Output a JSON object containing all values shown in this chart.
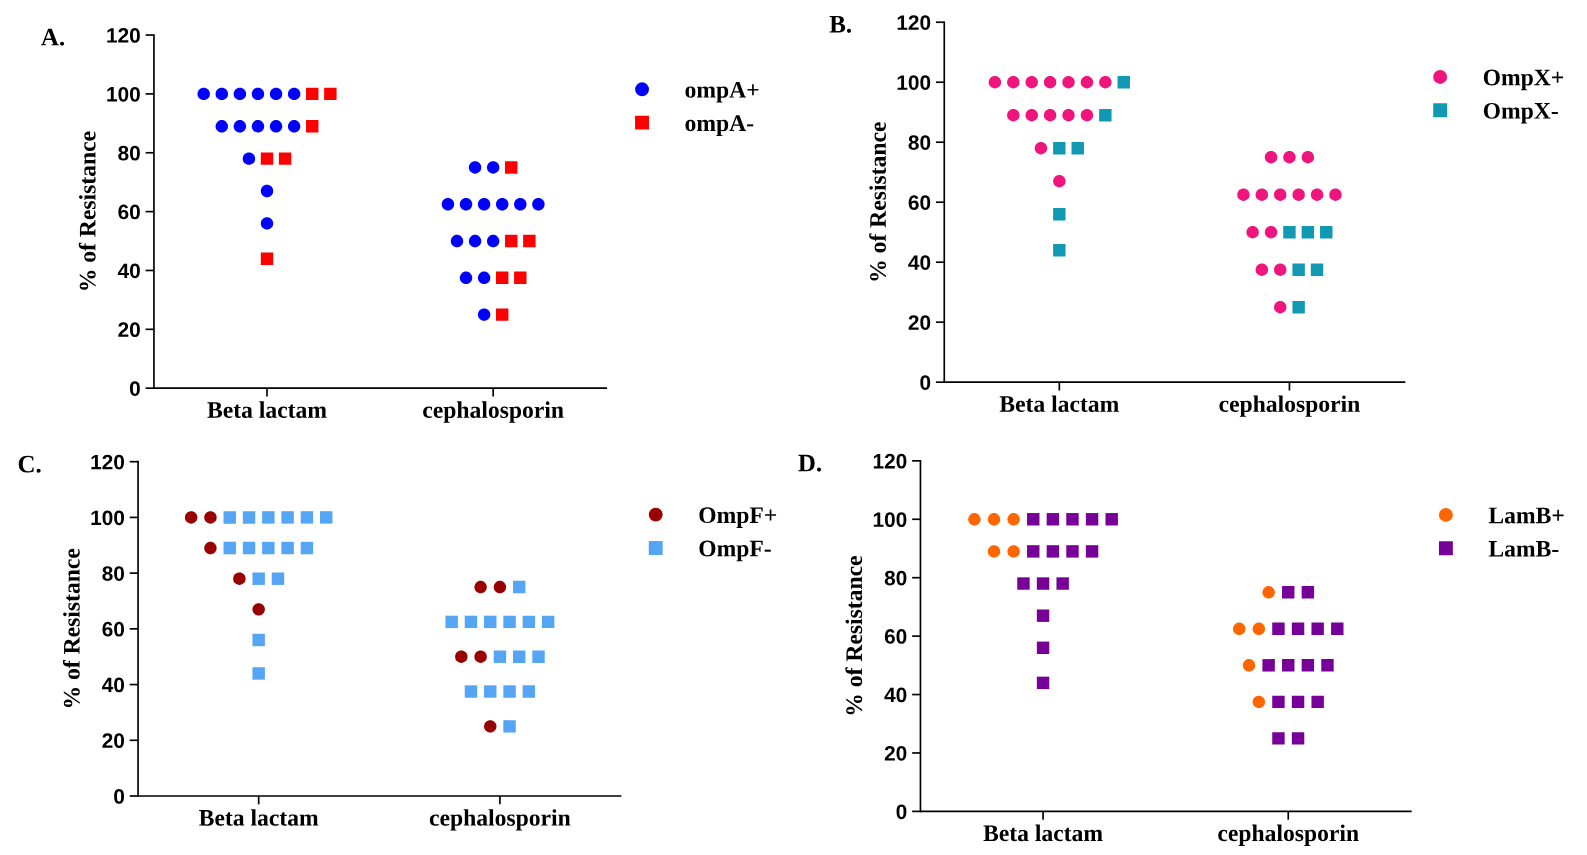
{
  "chart_data": [
    {
      "type": "scatter",
      "title": "A.",
      "ylabel": "% of Resistance",
      "categories": [
        "Beta lactam",
        "cephalosporin"
      ],
      "ylim": [
        0,
        120
      ],
      "yticks": [
        0,
        20,
        40,
        60,
        80,
        100,
        120
      ],
      "legend": "right",
      "series": [
        {
          "name": "ompA+",
          "color": "#0000ff",
          "marker": "circle",
          "x": [
            "Beta lactam",
            "Beta lactam",
            "Beta lactam",
            "Beta lactam",
            "Beta lactam",
            "Beta lactam",
            "Beta lactam",
            "Beta lactam",
            "Beta lactam",
            "Beta lactam",
            "Beta lactam",
            "Beta lactam",
            "Beta lactam",
            "Beta lactam",
            "cephalosporin",
            "cephalosporin",
            "cephalosporin",
            "cephalosporin",
            "cephalosporin",
            "cephalosporin",
            "cephalosporin",
            "cephalosporin",
            "cephalosporin",
            "cephalosporin",
            "cephalosporin",
            "cephalosporin",
            "cephalosporin",
            "cephalosporin"
          ],
          "values": [
            100,
            100,
            100,
            100,
            100,
            100,
            89,
            89,
            89,
            89,
            89,
            78,
            67,
            56,
            75,
            75,
            62.5,
            62.5,
            62.5,
            62.5,
            62.5,
            62.5,
            50,
            50,
            50,
            37.5,
            37.5,
            25
          ]
        },
        {
          "name": "ompA-",
          "color": "#ff0000",
          "marker": "square",
          "x": [
            "Beta lactam",
            "Beta lactam",
            "Beta lactam",
            "Beta lactam",
            "Beta lactam",
            "Beta lactam",
            "cephalosporin",
            "cephalosporin",
            "cephalosporin",
            "cephalosporin",
            "cephalosporin",
            "cephalosporin"
          ],
          "values": [
            100,
            100,
            89,
            78,
            78,
            44,
            75,
            50,
            50,
            37.5,
            37.5,
            25
          ]
        }
      ]
    },
    {
      "type": "scatter",
      "title": "B.",
      "ylabel": "% of Resistance",
      "categories": [
        "Beta lactam",
        "cephalosporin"
      ],
      "ylim": [
        0,
        120
      ],
      "yticks": [
        0,
        20,
        40,
        60,
        80,
        100,
        120
      ],
      "legend": "right",
      "series": [
        {
          "name": "OmpX+",
          "color": "#f0157d",
          "marker": "circle",
          "x": [
            "Beta lactam",
            "Beta lactam",
            "Beta lactam",
            "Beta lactam",
            "Beta lactam",
            "Beta lactam",
            "Beta lactam",
            "Beta lactam",
            "Beta lactam",
            "Beta lactam",
            "Beta lactam",
            "Beta lactam",
            "Beta lactam",
            "Beta lactam",
            "cephalosporin",
            "cephalosporin",
            "cephalosporin",
            "cephalosporin",
            "cephalosporin",
            "cephalosporin",
            "cephalosporin",
            "cephalosporin",
            "cephalosporin",
            "cephalosporin",
            "cephalosporin",
            "cephalosporin",
            "cephalosporin",
            "cephalosporin"
          ],
          "values": [
            100,
            100,
            100,
            100,
            100,
            100,
            100,
            89,
            89,
            89,
            89,
            89,
            78,
            67,
            75,
            75,
            75,
            62.5,
            62.5,
            62.5,
            62.5,
            62.5,
            62.5,
            50,
            50,
            37.5,
            37.5,
            25
          ]
        },
        {
          "name": "OmpX-",
          "color": "#1199b4",
          "marker": "square",
          "x": [
            "Beta lactam",
            "Beta lactam",
            "Beta lactam",
            "Beta lactam",
            "Beta lactam",
            "Beta lactam",
            "cephalosporin",
            "cephalosporin",
            "cephalosporin",
            "cephalosporin",
            "cephalosporin",
            "cephalosporin"
          ],
          "values": [
            100,
            89,
            78,
            78,
            56,
            44,
            50,
            50,
            50,
            37.5,
            37.5,
            25
          ]
        }
      ]
    },
    {
      "type": "scatter",
      "title": "C.",
      "ylabel": "% of Resistance",
      "categories": [
        "Beta lactam",
        "cephalosporin"
      ],
      "ylim": [
        0,
        120
      ],
      "yticks": [
        0,
        20,
        40,
        60,
        80,
        100,
        120
      ],
      "legend": "right",
      "series": [
        {
          "name": "OmpF+",
          "color": "#990000",
          "marker": "circle",
          "x": [
            "Beta lactam",
            "Beta lactam",
            "Beta lactam",
            "Beta lactam",
            "Beta lactam",
            "cephalosporin",
            "cephalosporin",
            "cephalosporin",
            "cephalosporin",
            "cephalosporin"
          ],
          "values": [
            100,
            100,
            89,
            78,
            67,
            75,
            75,
            50,
            50,
            25
          ]
        },
        {
          "name": "OmpF-",
          "color": "#55a5f5",
          "marker": "square",
          "x": [
            "Beta lactam",
            "Beta lactam",
            "Beta lactam",
            "Beta lactam",
            "Beta lactam",
            "Beta lactam",
            "Beta lactam",
            "Beta lactam",
            "Beta lactam",
            "Beta lactam",
            "Beta lactam",
            "Beta lactam",
            "Beta lactam",
            "Beta lactam",
            "Beta lactam",
            "cephalosporin",
            "cephalosporin",
            "cephalosporin",
            "cephalosporin",
            "cephalosporin",
            "cephalosporin",
            "cephalosporin",
            "cephalosporin",
            "cephalosporin",
            "cephalosporin",
            "cephalosporin",
            "cephalosporin",
            "cephalosporin",
            "cephalosporin",
            "cephalosporin"
          ],
          "values": [
            100,
            100,
            100,
            100,
            100,
            100,
            89,
            89,
            89,
            89,
            89,
            78,
            78,
            56,
            44,
            75,
            62.5,
            62.5,
            62.5,
            62.5,
            62.5,
            62.5,
            50,
            50,
            50,
            37.5,
            37.5,
            37.5,
            37.5,
            25
          ]
        }
      ]
    },
    {
      "type": "scatter",
      "title": "D.",
      "ylabel": "% of Resistance",
      "categories": [
        "Beta lactam",
        "cephalosporin"
      ],
      "ylim": [
        0,
        120
      ],
      "yticks": [
        0,
        20,
        40,
        60,
        80,
        100,
        120
      ],
      "legend": "right",
      "series": [
        {
          "name": "LamB+",
          "color": "#ff6600",
          "marker": "circle",
          "x": [
            "Beta lactam",
            "Beta lactam",
            "Beta lactam",
            "Beta lactam",
            "Beta lactam",
            "cephalosporin",
            "cephalosporin",
            "cephalosporin",
            "cephalosporin",
            "cephalosporin"
          ],
          "values": [
            100,
            100,
            100,
            89,
            89,
            75,
            62.5,
            62.5,
            50,
            37.5
          ]
        },
        {
          "name": "LamB-",
          "color": "#770099",
          "marker": "square",
          "x": [
            "Beta lactam",
            "Beta lactam",
            "Beta lactam",
            "Beta lactam",
            "Beta lactam",
            "Beta lactam",
            "Beta lactam",
            "Beta lactam",
            "Beta lactam",
            "Beta lactam",
            "Beta lactam",
            "Beta lactam",
            "Beta lactam",
            "Beta lactam",
            "Beta lactam",
            "cephalosporin",
            "cephalosporin",
            "cephalosporin",
            "cephalosporin",
            "cephalosporin",
            "cephalosporin",
            "cephalosporin",
            "cephalosporin",
            "cephalosporin",
            "cephalosporin",
            "cephalosporin",
            "cephalosporin",
            "cephalosporin",
            "cephalosporin",
            "cephalosporin"
          ],
          "values": [
            100,
            100,
            100,
            100,
            100,
            89,
            89,
            89,
            89,
            78,
            78,
            78,
            67,
            56,
            44,
            75,
            75,
            62.5,
            62.5,
            62.5,
            62.5,
            50,
            50,
            50,
            50,
            37.5,
            37.5,
            37.5,
            25,
            25
          ]
        }
      ]
    }
  ]
}
